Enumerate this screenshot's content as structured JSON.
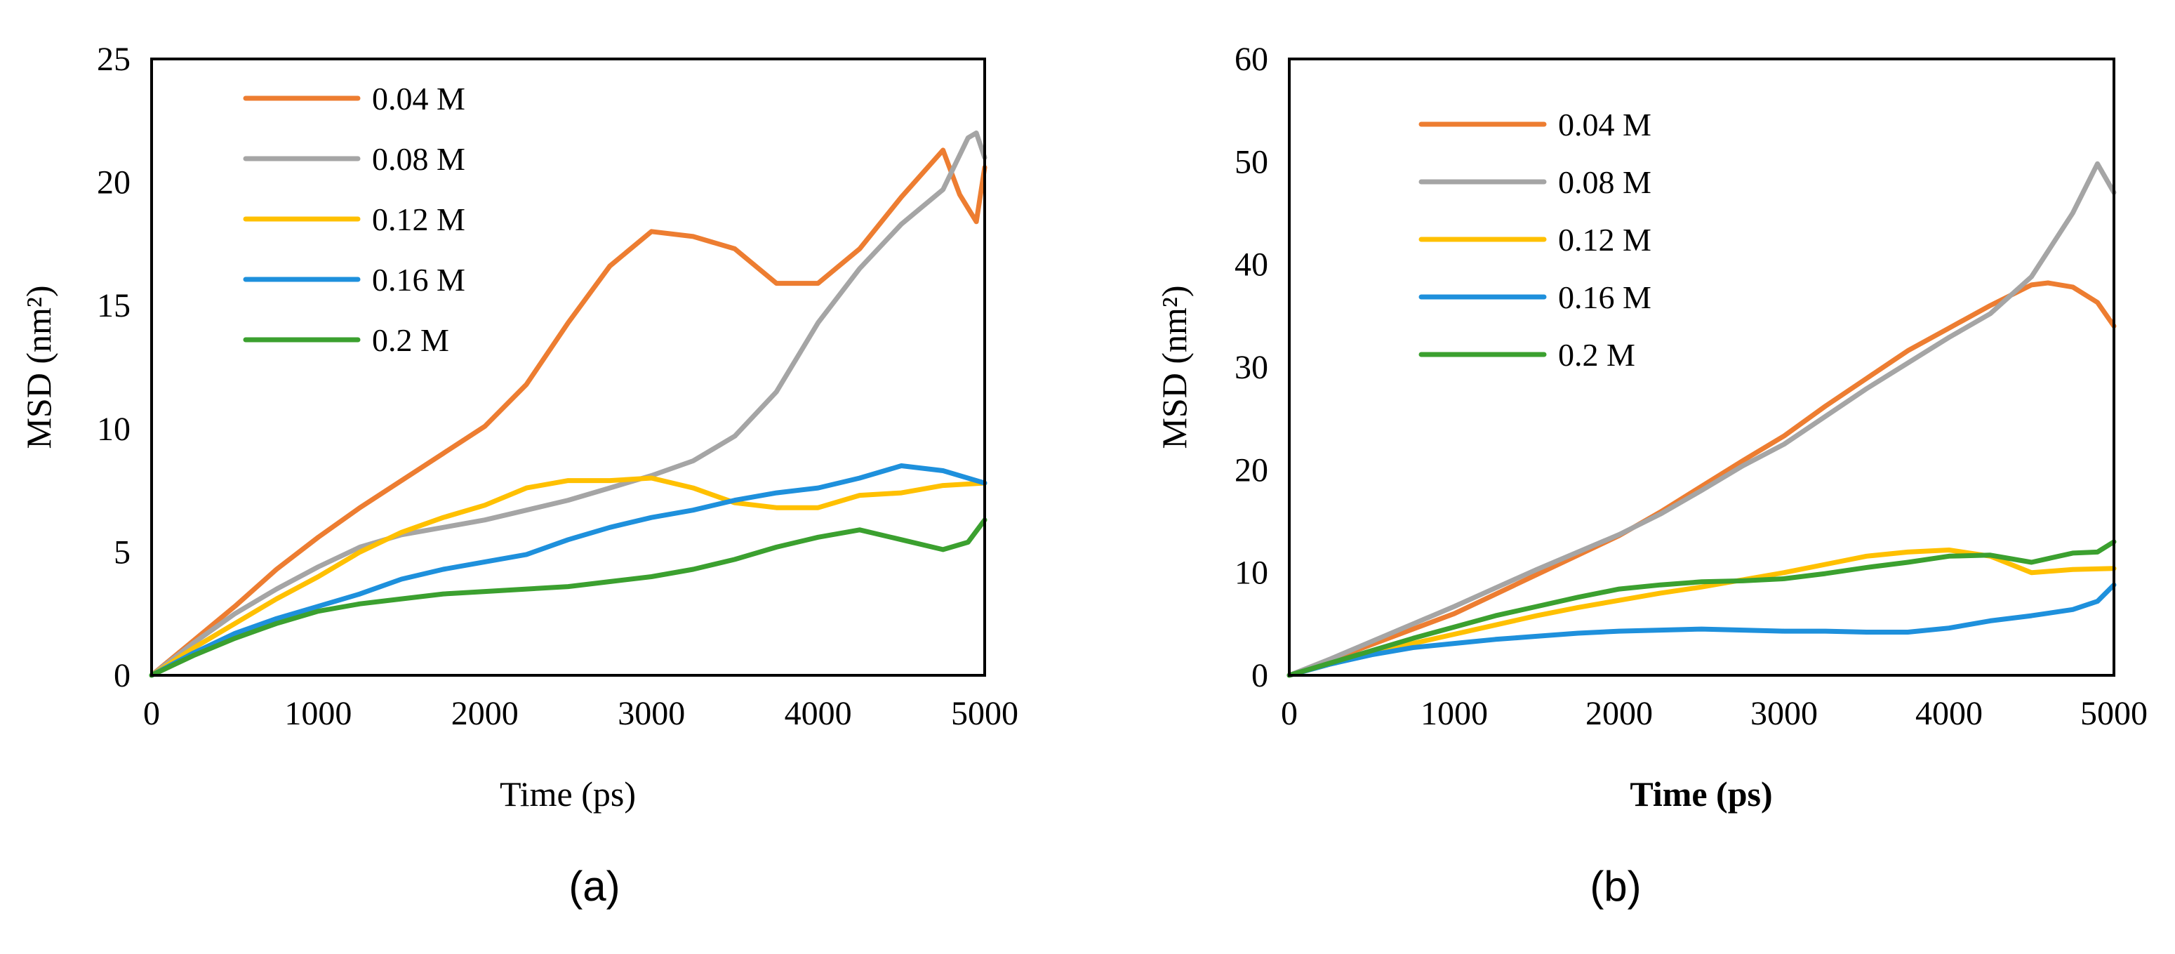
{
  "chart_data": [
    {
      "type": "line",
      "caption": "(a)",
      "xlabel": "Time (ps)",
      "ylabel": "MSD (nm²)",
      "xlim": [
        0,
        5000
      ],
      "ylim": [
        0,
        25
      ],
      "xticks": [
        "0",
        "1000",
        "2000",
        "3000",
        "4000",
        "5000"
      ],
      "yticks": [
        "0",
        "5",
        "10",
        "15",
        "20",
        "25"
      ],
      "grid": false,
      "legend": "top-left",
      "series": [
        {
          "name": "0.04 M",
          "color": "#ED7D31",
          "x": [
            0,
            250,
            500,
            750,
            1000,
            1250,
            1500,
            1750,
            2000,
            2250,
            2500,
            2750,
            3000,
            3250,
            3500,
            3750,
            4000,
            4250,
            4500,
            4750,
            4850,
            4950,
            5000
          ],
          "y": [
            0,
            1.4,
            2.8,
            4.3,
            5.6,
            6.8,
            7.9,
            9.0,
            10.1,
            11.8,
            14.3,
            16.6,
            18.0,
            17.8,
            17.3,
            15.9,
            15.9,
            17.3,
            19.4,
            21.3,
            19.5,
            18.4,
            20.6
          ]
        },
        {
          "name": "0.08 M",
          "color": "#A5A5A5",
          "x": [
            0,
            250,
            500,
            750,
            1000,
            1250,
            1500,
            1750,
            2000,
            2250,
            2500,
            2750,
            3000,
            3250,
            3500,
            3750,
            4000,
            4250,
            4500,
            4750,
            4900,
            4950,
            5000
          ],
          "y": [
            0,
            1.3,
            2.5,
            3.5,
            4.4,
            5.2,
            5.7,
            6.0,
            6.3,
            6.7,
            7.1,
            7.6,
            8.1,
            8.7,
            9.7,
            11.5,
            14.3,
            16.5,
            18.3,
            19.7,
            21.8,
            22.0,
            21.0
          ]
        },
        {
          "name": "0.12 M",
          "color": "#FFC000",
          "x": [
            0,
            250,
            500,
            750,
            1000,
            1250,
            1500,
            1750,
            2000,
            2250,
            2500,
            2750,
            3000,
            3250,
            3500,
            3750,
            4000,
            4250,
            4500,
            4750,
            5000
          ],
          "y": [
            0,
            1.1,
            2.1,
            3.1,
            4.0,
            5.0,
            5.8,
            6.4,
            6.9,
            7.6,
            7.9,
            7.9,
            8.0,
            7.6,
            7.0,
            6.8,
            6.8,
            7.3,
            7.4,
            7.7,
            7.8
          ]
        },
        {
          "name": "0.16 M",
          "color": "#1E90DC",
          "x": [
            0,
            250,
            500,
            750,
            1000,
            1250,
            1500,
            1750,
            2000,
            2250,
            2500,
            2750,
            3000,
            3250,
            3500,
            3750,
            4000,
            4250,
            4500,
            4750,
            5000
          ],
          "y": [
            0,
            0.9,
            1.7,
            2.3,
            2.8,
            3.3,
            3.9,
            4.3,
            4.6,
            4.9,
            5.5,
            6.0,
            6.4,
            6.7,
            7.1,
            7.4,
            7.6,
            8.0,
            8.5,
            8.3,
            7.8
          ]
        },
        {
          "name": "0.2 M",
          "color": "#3BA02F",
          "x": [
            0,
            250,
            500,
            750,
            1000,
            1250,
            1500,
            1750,
            2000,
            2250,
            2500,
            2750,
            3000,
            3250,
            3500,
            3750,
            4000,
            4250,
            4500,
            4750,
            4900,
            5000
          ],
          "y": [
            0,
            0.8,
            1.5,
            2.1,
            2.6,
            2.9,
            3.1,
            3.3,
            3.4,
            3.5,
            3.6,
            3.8,
            4.0,
            4.3,
            4.7,
            5.2,
            5.6,
            5.9,
            5.5,
            5.1,
            5.4,
            6.3
          ]
        }
      ]
    },
    {
      "type": "line",
      "caption": "(b)",
      "xlabel": "Time (ps)",
      "ylabel": "MSD (nm²)",
      "xlim": [
        0,
        5000
      ],
      "ylim": [
        0,
        60
      ],
      "xticks": [
        "0",
        "1000",
        "2000",
        "3000",
        "4000",
        "5000"
      ],
      "yticks": [
        "0",
        "10",
        "20",
        "30",
        "40",
        "50",
        "60"
      ],
      "grid": false,
      "legend": "top-left",
      "series": [
        {
          "name": "0.04 M",
          "color": "#ED7D31",
          "x": [
            0,
            250,
            500,
            750,
            1000,
            1250,
            1500,
            1750,
            2000,
            2250,
            2500,
            2750,
            3000,
            3250,
            3500,
            3750,
            4000,
            4250,
            4500,
            4600,
            4750,
            4900,
            5000
          ],
          "y": [
            0,
            1.5,
            3.0,
            4.5,
            6.0,
            7.9,
            9.8,
            11.7,
            13.6,
            15.9,
            18.4,
            20.9,
            23.3,
            26.2,
            28.9,
            31.6,
            33.8,
            36.0,
            38.0,
            38.2,
            37.8,
            36.3,
            34.0
          ]
        },
        {
          "name": "0.08 M",
          "color": "#A5A5A5",
          "x": [
            0,
            250,
            500,
            750,
            1000,
            1250,
            1500,
            1750,
            2000,
            2250,
            2500,
            2750,
            3000,
            3250,
            3500,
            3750,
            4000,
            4250,
            4500,
            4750,
            4900,
            5000
          ],
          "y": [
            0,
            1.6,
            3.3,
            5.0,
            6.7,
            8.5,
            10.3,
            12.0,
            13.7,
            15.7,
            18.0,
            20.4,
            22.5,
            25.2,
            27.9,
            30.4,
            32.9,
            35.2,
            38.8,
            45.0,
            49.8,
            47.0
          ]
        },
        {
          "name": "0.12 M",
          "color": "#FFC000",
          "x": [
            0,
            250,
            500,
            750,
            1000,
            1250,
            1500,
            1750,
            2000,
            2250,
            2500,
            2750,
            3000,
            3250,
            3500,
            3750,
            4000,
            4250,
            4500,
            4750,
            5000
          ],
          "y": [
            0,
            1.1,
            2.1,
            3.1,
            4.0,
            4.9,
            5.8,
            6.6,
            7.3,
            8.0,
            8.6,
            9.3,
            10.0,
            10.8,
            11.6,
            12.0,
            12.2,
            11.6,
            10.0,
            10.3,
            10.4
          ]
        },
        {
          "name": "0.16 M",
          "color": "#1E90DC",
          "x": [
            0,
            250,
            500,
            750,
            1000,
            1250,
            1500,
            1750,
            2000,
            2250,
            2500,
            2750,
            3000,
            3250,
            3500,
            3750,
            4000,
            4250,
            4500,
            4750,
            4900,
            5000
          ],
          "y": [
            0,
            1.1,
            2.0,
            2.7,
            3.1,
            3.5,
            3.8,
            4.1,
            4.3,
            4.4,
            4.5,
            4.4,
            4.3,
            4.3,
            4.2,
            4.2,
            4.6,
            5.3,
            5.8,
            6.4,
            7.2,
            8.8
          ]
        },
        {
          "name": "0.2 M",
          "color": "#3BA02F",
          "x": [
            0,
            250,
            500,
            750,
            1000,
            1250,
            1500,
            1750,
            2000,
            2250,
            2500,
            2750,
            3000,
            3250,
            3500,
            3750,
            4000,
            4250,
            4500,
            4750,
            4900,
            5000
          ],
          "y": [
            0,
            1.2,
            2.4,
            3.6,
            4.7,
            5.8,
            6.7,
            7.6,
            8.4,
            8.8,
            9.1,
            9.2,
            9.4,
            9.9,
            10.5,
            11.0,
            11.6,
            11.7,
            11.0,
            11.9,
            12.0,
            13.0
          ]
        }
      ]
    }
  ]
}
